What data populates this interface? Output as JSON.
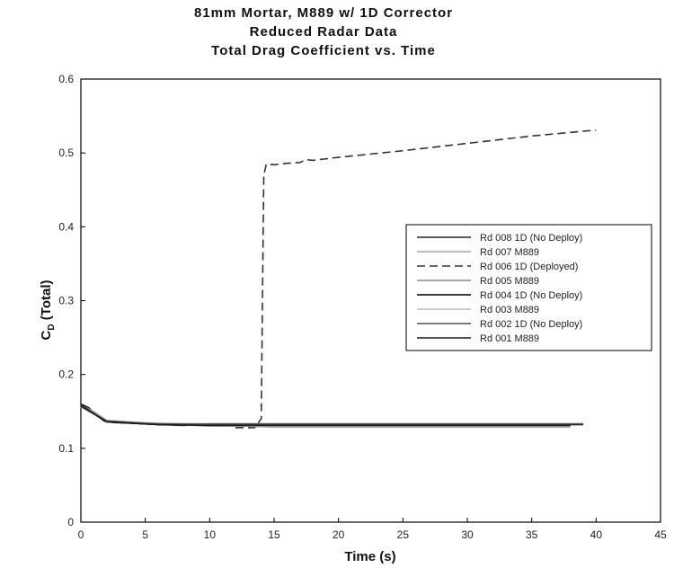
{
  "chart_data": {
    "type": "line",
    "title": [
      "81mm Mortar, M889 w/ 1D Corrector",
      "Reduced Radar Data",
      "Total Drag Coefficient vs. Time"
    ],
    "xlabel": "Time (s)",
    "ylabel": "C",
    "ylabel_sub": "D",
    "ylabel_suffix": " (Total)",
    "xlim": [
      0,
      45
    ],
    "ylim": [
      0,
      0.6
    ],
    "xticks": [
      0,
      5,
      10,
      15,
      20,
      25,
      30,
      35,
      40,
      45
    ],
    "yticks": [
      0,
      0.1,
      0.2,
      0.3,
      0.4,
      0.5,
      0.6
    ],
    "xtick_labels": [
      "0",
      "5",
      "10",
      "15",
      "20",
      "25",
      "30",
      "35",
      "40",
      "45"
    ],
    "ytick_labels": [
      "0",
      "0.1",
      "0.2",
      "0.3",
      "0.4",
      "0.5",
      "0.6"
    ],
    "grid": false,
    "legend_position": "right",
    "series": [
      {
        "name": "Rd 008 1D (No Deploy)",
        "color": "#222222",
        "dash": "solid",
        "x": [
          0,
          0.6,
          1.2,
          1.8,
          2.5,
          4,
          6,
          8,
          10,
          15,
          20,
          25,
          30,
          35,
          39
        ],
        "y": [
          0.16,
          0.155,
          0.145,
          0.137,
          0.135,
          0.134,
          0.132,
          0.131,
          0.133,
          0.133,
          0.133,
          0.133,
          0.133,
          0.133,
          0.133
        ]
      },
      {
        "name": "Rd 007 M889",
        "color": "#aaaaaa",
        "dash": "solid",
        "x": [
          0,
          1,
          2,
          4,
          8,
          12,
          16,
          20,
          25,
          30,
          35,
          38
        ],
        "y": [
          0.158,
          0.15,
          0.138,
          0.135,
          0.133,
          0.132,
          0.132,
          0.131,
          0.131,
          0.131,
          0.131,
          0.131
        ]
      },
      {
        "name": "Rd 006 1D (Deployed)",
        "color": "#333333",
        "dash": "dashed",
        "x": [
          12,
          13.5,
          14.0,
          14.2,
          14.4,
          15,
          16,
          17,
          17.5,
          18,
          20,
          25,
          30,
          35,
          40
        ],
        "y": [
          0.128,
          0.128,
          0.14,
          0.47,
          0.485,
          0.484,
          0.486,
          0.487,
          0.491,
          0.49,
          0.494,
          0.503,
          0.513,
          0.523,
          0.531
        ]
      },
      {
        "name": "Rd 005 M889",
        "color": "#888888",
        "dash": "solid",
        "x": [
          0,
          2,
          6,
          10,
          15,
          20,
          25,
          30,
          35,
          38
        ],
        "y": [
          0.157,
          0.137,
          0.133,
          0.131,
          0.129,
          0.129,
          0.129,
          0.129,
          0.129,
          0.129
        ]
      },
      {
        "name": "Rd 004 1D (No Deploy)",
        "color": "#000000",
        "dash": "solid",
        "x": [
          0,
          2,
          6,
          10,
          15,
          20,
          25,
          30,
          35,
          39
        ],
        "y": [
          0.159,
          0.136,
          0.132,
          0.132,
          0.132,
          0.132,
          0.132,
          0.132,
          0.132,
          0.132
        ]
      },
      {
        "name": "Rd 003 M889",
        "color": "#bbbbbb",
        "dash": "solid",
        "x": [
          0,
          2,
          6,
          10,
          15,
          20,
          25,
          30,
          35,
          38
        ],
        "y": [
          0.156,
          0.138,
          0.133,
          0.13,
          0.13,
          0.13,
          0.13,
          0.13,
          0.13,
          0.13
        ]
      },
      {
        "name": "Rd 002 1D (No Deploy)",
        "color": "#555555",
        "dash": "solid",
        "x": [
          0,
          2,
          6,
          10,
          15,
          20,
          25,
          30,
          35,
          39
        ],
        "y": [
          0.158,
          0.137,
          0.133,
          0.133,
          0.133,
          0.133,
          0.133,
          0.133,
          0.133,
          0.133
        ]
      },
      {
        "name": "Rd 001 M889",
        "color": "#1a1a1a",
        "dash": "solid",
        "x": [
          0,
          2,
          6,
          10,
          15,
          20,
          25,
          30,
          35,
          38
        ],
        "y": [
          0.157,
          0.136,
          0.132,
          0.131,
          0.131,
          0.131,
          0.131,
          0.131,
          0.131,
          0.131
        ]
      }
    ]
  }
}
